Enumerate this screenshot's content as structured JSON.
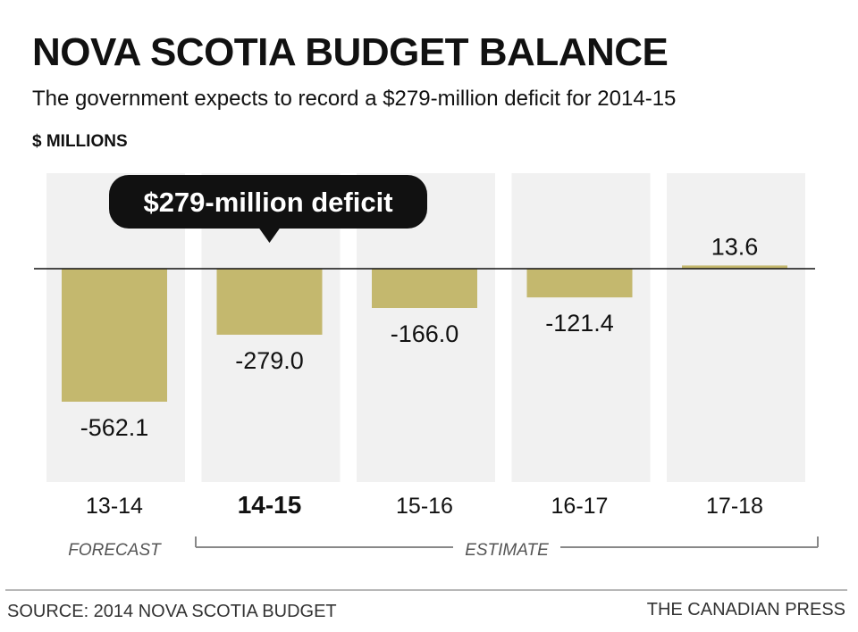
{
  "title": "NOVA SCOTIA BUDGET BALANCE",
  "subtitle": "The government expects to record a $279-million deficit for 2014-15",
  "unit_label": "$ MILLIONS",
  "callout": "$279-million deficit",
  "footer": {
    "source": "SOURCE: 2014 NOVA SCOTIA BUDGET",
    "credit": "THE CANADIAN PRESS"
  },
  "colors": {
    "bar": "#c4b86e",
    "column_bg": "#f1f1f1",
    "callout_bg": "#111111",
    "bracket": "#888888"
  },
  "chart_data": {
    "type": "bar",
    "title": "NOVA SCOTIA BUDGET BALANCE",
    "ylabel": "$ MILLIONS",
    "categories": [
      "13-14",
      "14-15",
      "15-16",
      "16-17",
      "17-18"
    ],
    "values": [
      -562.1,
      -279.0,
      -166.0,
      -121.4,
      13.6
    ],
    "value_labels": [
      "-562.1",
      "-279.0",
      "-166.0",
      "-121.4",
      "13.6"
    ],
    "highlight_index": 1,
    "groups": [
      {
        "label": "FORECAST",
        "categories": [
          "13-14"
        ]
      },
      {
        "label": "ESTIMATE",
        "categories": [
          "14-15",
          "15-16",
          "16-17",
          "17-18"
        ]
      }
    ],
    "ylim": [
      -700,
      400
    ]
  }
}
